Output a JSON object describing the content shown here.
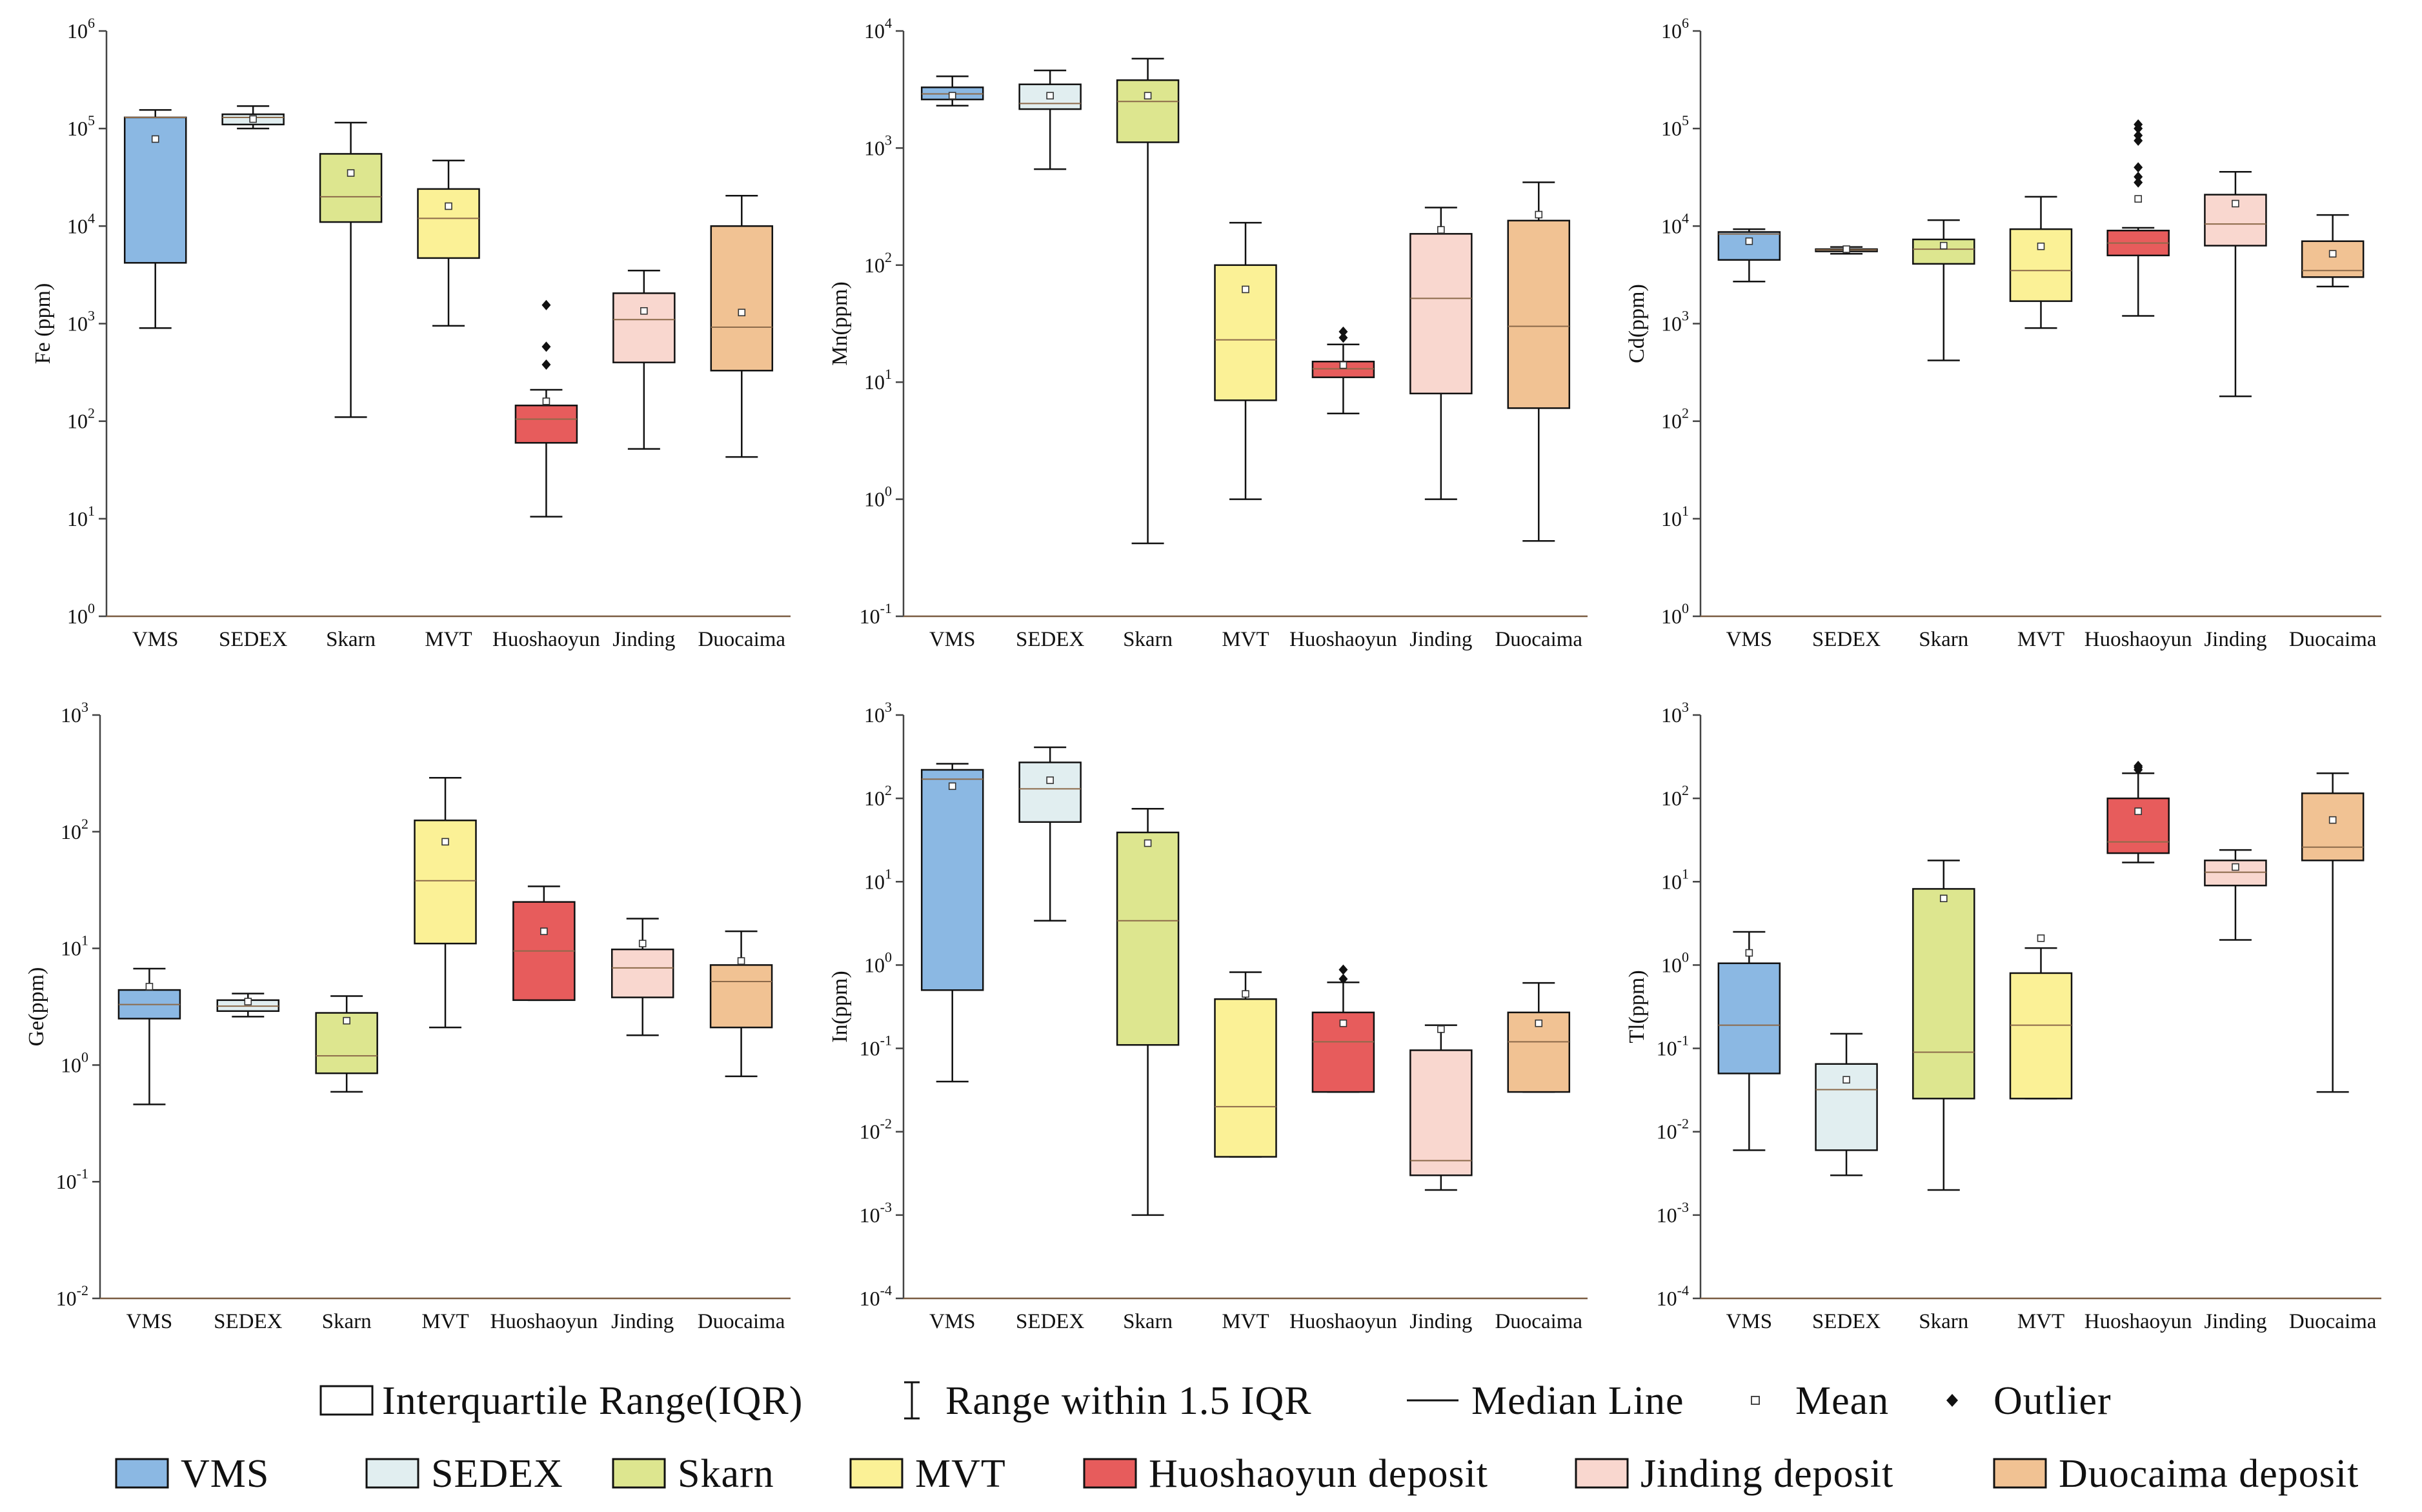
{
  "colors": {
    "VMS": "#8bb8e3",
    "SEDEX": "#e1eef0",
    "Skarn": "#dde68f",
    "MVT": "#fbf196",
    "Huoshaoyun": "#e75c5c",
    "Jinding": "#f9d7cf",
    "Duocaima": "#f1c293",
    "median": "#8c6a4a",
    "axis": "#444444"
  },
  "legend": {
    "row1": [
      {
        "symbol": "box",
        "label": "Interquartile Range(IQR)"
      },
      {
        "symbol": "whisker",
        "label": "Range within 1.5 IQR"
      },
      {
        "symbol": "line",
        "label": "Median Line"
      },
      {
        "symbol": "mean",
        "label": "Mean"
      },
      {
        "symbol": "outlier",
        "label": "Outlier"
      }
    ],
    "row2": [
      {
        "key": "VMS",
        "label": "VMS"
      },
      {
        "key": "SEDEX",
        "label": "SEDEX"
      },
      {
        "key": "Skarn",
        "label": "Skarn"
      },
      {
        "key": "MVT",
        "label": "MVT"
      },
      {
        "key": "Huoshaoyun",
        "label": "Huoshaoyun deposit"
      },
      {
        "key": "Jinding",
        "label": "Jinding deposit"
      },
      {
        "key": "Duocaima",
        "label": "Duocaima deposit"
      }
    ]
  },
  "chart_data": [
    {
      "type": "box",
      "ylabel": "Fe (ppm)",
      "yscale": "log",
      "ylim_exp": [
        0,
        6
      ],
      "categories": [
        "VMS",
        "SEDEX",
        "Skarn",
        "MVT",
        "Huoshaoyun",
        "Jinding",
        "Duocaima"
      ],
      "boxes": [
        {
          "key": "VMS",
          "whislo": 900,
          "q1": 4200,
          "med": 130000,
          "q3": 130000,
          "whishi": 155000,
          "mean": 78000,
          "outliers": []
        },
        {
          "key": "SEDEX",
          "whislo": 100000,
          "q1": 110000,
          "med": 130000,
          "q3": 140000,
          "whishi": 170000,
          "mean": 125000,
          "outliers": []
        },
        {
          "key": "Skarn",
          "whislo": 110,
          "q1": 11000,
          "med": 20000,
          "q3": 55000,
          "whishi": 115000,
          "mean": 35000,
          "outliers": []
        },
        {
          "key": "MVT",
          "whislo": 950,
          "q1": 4700,
          "med": 12000,
          "q3": 24000,
          "whishi": 47000,
          "mean": 16000,
          "outliers": []
        },
        {
          "key": "Huoshaoyun",
          "whislo": 10.5,
          "q1": 60,
          "med": 105,
          "q3": 145,
          "whishi": 210,
          "mean": 160,
          "outliers": [
            380,
            580,
            1550
          ]
        },
        {
          "key": "Jinding",
          "whislo": 52,
          "q1": 400,
          "med": 1100,
          "q3": 2050,
          "whishi": 3500,
          "mean": 1350,
          "outliers": []
        },
        {
          "key": "Duocaima",
          "whislo": 43,
          "q1": 330,
          "med": 920,
          "q3": 10000,
          "whishi": 20500,
          "mean": 1300,
          "outliers": []
        }
      ]
    },
    {
      "type": "box",
      "ylabel": "Mn(ppm)",
      "yscale": "log",
      "ylim_exp": [
        -1,
        4
      ],
      "categories": [
        "VMS",
        "SEDEX",
        "Skarn",
        "MVT",
        "Huoshaoyun",
        "Jinding",
        "Duocaima"
      ],
      "boxes": [
        {
          "key": "VMS",
          "whislo": 2300,
          "q1": 2600,
          "med": 2900,
          "q3": 3300,
          "whishi": 4100,
          "mean": 2800,
          "outliers": []
        },
        {
          "key": "SEDEX",
          "whislo": 660,
          "q1": 2150,
          "med": 2400,
          "q3": 3500,
          "whishi": 4600,
          "mean": 2800,
          "outliers": []
        },
        {
          "key": "Skarn",
          "whislo": 0.42,
          "q1": 1120,
          "med": 2500,
          "q3": 3800,
          "whishi": 5800,
          "mean": 2800,
          "outliers": []
        },
        {
          "key": "MVT",
          "whislo": 1,
          "q1": 7,
          "med": 23,
          "q3": 100,
          "whishi": 230,
          "mean": 62,
          "outliers": []
        },
        {
          "key": "Huoshaoyun",
          "whislo": 5.4,
          "q1": 11,
          "med": 13,
          "q3": 15,
          "whishi": 21,
          "mean": 14,
          "outliers": [
            24,
            27
          ]
        },
        {
          "key": "Jinding",
          "whislo": 1,
          "q1": 8,
          "med": 52,
          "q3": 185,
          "whishi": 310,
          "mean": 200,
          "outliers": []
        },
        {
          "key": "Duocaima",
          "whislo": 0.44,
          "q1": 6,
          "med": 30,
          "q3": 240,
          "whishi": 510,
          "mean": 270,
          "outliers": []
        }
      ]
    },
    {
      "type": "box",
      "ylabel": "Cd(ppm)",
      "yscale": "log",
      "ylim_exp": [
        0,
        6
      ],
      "categories": [
        "VMS",
        "SEDEX",
        "Skarn",
        "MVT",
        "Huoshaoyun",
        "Jinding",
        "Duocaima"
      ],
      "boxes": [
        {
          "key": "VMS",
          "whislo": 2700,
          "q1": 4500,
          "med": 8300,
          "q3": 8700,
          "whishi": 9300,
          "mean": 7000,
          "outliers": []
        },
        {
          "key": "SEDEX",
          "whislo": 5200,
          "q1": 5500,
          "med": 5700,
          "q3": 5800,
          "whishi": 6100,
          "mean": 5800,
          "outliers": []
        },
        {
          "key": "Skarn",
          "whislo": 420,
          "q1": 4100,
          "med": 5800,
          "q3": 7300,
          "whishi": 11500,
          "mean": 6300,
          "outliers": []
        },
        {
          "key": "MVT",
          "whislo": 900,
          "q1": 1700,
          "med": 3500,
          "q3": 9300,
          "whishi": 20000,
          "mean": 6200,
          "outliers": []
        },
        {
          "key": "Huoshaoyun",
          "whislo": 1200,
          "q1": 5000,
          "med": 6700,
          "q3": 9000,
          "whishi": 9600,
          "mean": 19000,
          "outliers": [
            28000,
            32000,
            40000,
            75000,
            85000,
            100000,
            110000
          ]
        },
        {
          "key": "Jinding",
          "whislo": 180,
          "q1": 6300,
          "med": 10500,
          "q3": 21000,
          "whishi": 36000,
          "mean": 17000,
          "outliers": []
        },
        {
          "key": "Duocaima",
          "whislo": 2400,
          "q1": 3000,
          "med": 3500,
          "q3": 7000,
          "whishi": 13000,
          "mean": 5200,
          "outliers": []
        }
      ]
    },
    {
      "type": "box",
      "ylabel": "Ge(ppm)",
      "yscale": "log",
      "ylim_exp": [
        -2,
        3
      ],
      "categories": [
        "VMS",
        "SEDEX",
        "Skarn",
        "MVT",
        "Huoshaoyun",
        "Jinding",
        "Duocaima"
      ],
      "boxes": [
        {
          "key": "VMS",
          "whislo": 0.46,
          "q1": 2.5,
          "med": 3.3,
          "q3": 4.4,
          "whishi": 6.7,
          "mean": 4.7,
          "outliers": []
        },
        {
          "key": "SEDEX",
          "whislo": 2.6,
          "q1": 2.9,
          "med": 3.2,
          "q3": 3.6,
          "whishi": 4.1,
          "mean": 3.5,
          "outliers": []
        },
        {
          "key": "Skarn",
          "whislo": 0.59,
          "q1": 0.85,
          "med": 1.2,
          "q3": 2.8,
          "whishi": 3.9,
          "mean": 2.4,
          "outliers": []
        },
        {
          "key": "MVT",
          "whislo": 2.1,
          "q1": 11,
          "med": 38,
          "q3": 125,
          "whishi": 290,
          "mean": 82,
          "outliers": []
        },
        {
          "key": "Huoshaoyun",
          "whislo": 3.6,
          "q1": 3.6,
          "med": 9.5,
          "q3": 25,
          "whishi": 34,
          "mean": 14,
          "outliers": []
        },
        {
          "key": "Jinding",
          "whislo": 1.8,
          "q1": 3.8,
          "med": 6.8,
          "q3": 9.8,
          "whishi": 18,
          "mean": 11,
          "outliers": []
        },
        {
          "key": "Duocaima",
          "whislo": 0.8,
          "q1": 2.1,
          "med": 5.2,
          "q3": 7.2,
          "whishi": 14,
          "mean": 7.8,
          "outliers": []
        }
      ]
    },
    {
      "type": "box",
      "ylabel": "In(ppm)",
      "yscale": "log",
      "ylim_exp": [
        -4,
        3
      ],
      "categories": [
        "VMS",
        "SEDEX",
        "Skarn",
        "MVT",
        "Huoshaoyun",
        "Jinding",
        "Duocaima"
      ],
      "boxes": [
        {
          "key": "VMS",
          "whislo": 0.04,
          "q1": 0.5,
          "med": 170,
          "q3": 220,
          "whishi": 260,
          "mean": 140,
          "outliers": []
        },
        {
          "key": "SEDEX",
          "whislo": 3.4,
          "q1": 52,
          "med": 130,
          "q3": 270,
          "whishi": 410,
          "mean": 165,
          "outliers": []
        },
        {
          "key": "Skarn",
          "whislo": 0.001,
          "q1": 0.11,
          "med": 3.4,
          "q3": 39,
          "whishi": 75,
          "mean": 29,
          "outliers": []
        },
        {
          "key": "MVT",
          "whislo": 0.005,
          "q1": 0.005,
          "med": 0.02,
          "q3": 0.39,
          "whishi": 0.82,
          "mean": 0.45,
          "outliers": []
        },
        {
          "key": "Huoshaoyun",
          "whislo": 0.03,
          "q1": 0.03,
          "med": 0.12,
          "q3": 0.27,
          "whishi": 0.62,
          "mean": 0.2,
          "outliers": [
            0.68,
            0.88
          ]
        },
        {
          "key": "Jinding",
          "whislo": 0.002,
          "q1": 0.003,
          "med": 0.0045,
          "q3": 0.095,
          "whishi": 0.19,
          "mean": 0.17,
          "outliers": []
        },
        {
          "key": "Duocaima",
          "whislo": 0.03,
          "q1": 0.03,
          "med": 0.12,
          "q3": 0.27,
          "whishi": 0.61,
          "mean": 0.2,
          "outliers": []
        }
      ]
    },
    {
      "type": "box",
      "ylabel": "Tl(ppm)",
      "yscale": "log",
      "ylim_exp": [
        -4,
        3
      ],
      "categories": [
        "VMS",
        "SEDEX",
        "Skarn",
        "MVT",
        "Huoshaoyun",
        "Jinding",
        "Duocaima"
      ],
      "boxes": [
        {
          "key": "VMS",
          "whislo": 0.006,
          "q1": 0.05,
          "med": 0.19,
          "q3": 1.05,
          "whishi": 2.5,
          "mean": 1.4,
          "outliers": []
        },
        {
          "key": "SEDEX",
          "whislo": 0.003,
          "q1": 0.006,
          "med": 0.032,
          "q3": 0.065,
          "whishi": 0.15,
          "mean": 0.042,
          "outliers": []
        },
        {
          "key": "Skarn",
          "whislo": 0.002,
          "q1": 0.025,
          "med": 0.09,
          "q3": 8.2,
          "whishi": 18,
          "mean": 6.3,
          "outliers": []
        },
        {
          "key": "MVT",
          "whislo": 0.025,
          "q1": 0.025,
          "med": 0.19,
          "q3": 0.8,
          "whishi": 1.6,
          "mean": 2.1,
          "outliers": []
        },
        {
          "key": "Huoshaoyun",
          "whislo": 17,
          "q1": 22,
          "med": 30,
          "q3": 100,
          "whishi": 200,
          "mean": 70,
          "outliers": [
            220,
            235,
            245
          ]
        },
        {
          "key": "Jinding",
          "whislo": 2,
          "q1": 9,
          "med": 13,
          "q3": 18,
          "whishi": 24,
          "mean": 15,
          "outliers": []
        },
        {
          "key": "Duocaima",
          "whislo": 0.03,
          "q1": 18,
          "med": 26,
          "q3": 115,
          "whishi": 200,
          "mean": 55,
          "outliers": []
        }
      ]
    }
  ]
}
